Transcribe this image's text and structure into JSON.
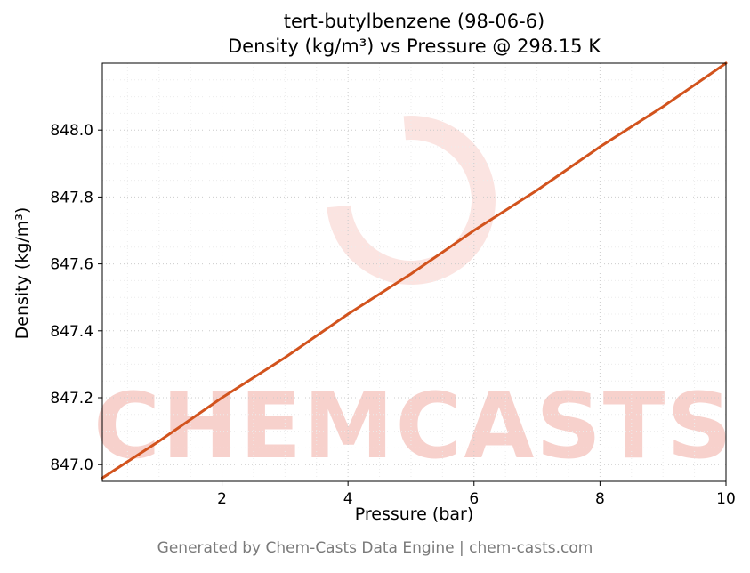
{
  "chart": {
    "title_line1": "tert-butylbenzene (98-06-6)",
    "title_line2": "Density (kg/m³) vs Pressure @ 298.15 K",
    "xlabel": "Pressure (bar)",
    "ylabel": "Density (kg/m³)"
  },
  "watermark": {
    "text": "CHEMCASTS"
  },
  "footer": {
    "text": "Generated by Chem-Casts Data Engine | chem-casts.com"
  },
  "colors": {
    "line": "#d2531d",
    "watermark": "rgba(224, 76, 58, 0.26)",
    "watermark_ring": "rgba(224, 76, 58, 0.15)",
    "grid": "#cccccc",
    "minor_grid": "#ececec",
    "axis": "#000000",
    "footer": "#7a7a7a"
  },
  "chart_data": {
    "type": "line",
    "title": "tert-butylbenzene (98-06-6) — Density (kg/m³) vs Pressure @ 298.15 K",
    "xlabel": "Pressure (bar)",
    "ylabel": "Density (kg/m³)",
    "xlim": [
      0.1,
      10
    ],
    "ylim": [
      846.95,
      848.2
    ],
    "xticks": [
      2,
      4,
      6,
      8,
      10
    ],
    "yticks": [
      847.0,
      847.2,
      847.4,
      847.6,
      847.8,
      848.0
    ],
    "grid": true,
    "legend": false,
    "series": [
      {
        "name": "Density @ 298.15 K",
        "x": [
          0.1,
          1,
          2,
          3,
          4,
          5,
          6,
          7,
          8,
          9,
          10
        ],
        "y": [
          846.96,
          847.07,
          847.2,
          847.32,
          847.45,
          847.57,
          847.7,
          847.82,
          847.95,
          848.07,
          848.2
        ]
      }
    ]
  }
}
